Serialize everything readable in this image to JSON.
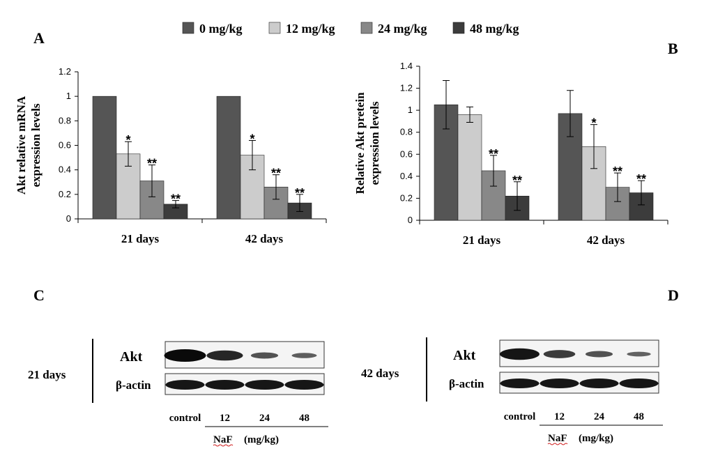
{
  "legend": [
    {
      "label": "0 mg/kg",
      "color": "#555555"
    },
    {
      "label": "12 mg/kg",
      "color": "#cccccc"
    },
    {
      "label": "24 mg/kg",
      "color": "#888888"
    },
    {
      "label": "48 mg/kg",
      "color": "#3c3c3c"
    }
  ],
  "chart_data": [
    {
      "panel": "A",
      "type": "bar",
      "categories": [
        "21 days",
        "42 days"
      ],
      "ylabel": "Akt relative mRNA expression levels",
      "ylim": [
        0,
        1.2
      ],
      "yticks": [
        "0",
        "0.2",
        "0.4",
        "0.6",
        "0.8",
        "1",
        "1.2"
      ],
      "series": [
        {
          "name": "0 mg/kg",
          "values": [
            1.0,
            1.0
          ],
          "errors": [
            0,
            0
          ],
          "sig": [
            "",
            ""
          ]
        },
        {
          "name": "12 mg/kg",
          "values": [
            0.53,
            0.52
          ],
          "errors": [
            0.1,
            0.12
          ],
          "sig": [
            "*",
            "*"
          ]
        },
        {
          "name": "24 mg/kg",
          "values": [
            0.31,
            0.26
          ],
          "errors": [
            0.13,
            0.1
          ],
          "sig": [
            "**",
            "**"
          ]
        },
        {
          "name": "48 mg/kg",
          "values": [
            0.12,
            0.13
          ],
          "errors": [
            0.03,
            0.07
          ],
          "sig": [
            "**",
            "**"
          ]
        }
      ]
    },
    {
      "panel": "B",
      "type": "bar",
      "categories": [
        "21 days",
        "42 days"
      ],
      "ylabel": "Relative Akt pretein expression levels",
      "ylim": [
        0,
        1.4
      ],
      "yticks": [
        "0",
        "0.2",
        "0.4",
        "0.6",
        "0.8",
        "1",
        "1.2",
        "1.4"
      ],
      "series": [
        {
          "name": "0 mg/kg",
          "values": [
            1.05,
            0.97
          ],
          "errors": [
            0.22,
            0.21
          ],
          "sig": [
            "",
            ""
          ]
        },
        {
          "name": "12 mg/kg",
          "values": [
            0.96,
            0.67
          ],
          "errors": [
            0.07,
            0.2
          ],
          "sig": [
            "",
            "*"
          ]
        },
        {
          "name": "24 mg/kg",
          "values": [
            0.45,
            0.3
          ],
          "errors": [
            0.14,
            0.13
          ],
          "sig": [
            "**",
            "**"
          ]
        },
        {
          "name": "48 mg/kg",
          "values": [
            0.22,
            0.25
          ],
          "errors": [
            0.13,
            0.11
          ],
          "sig": [
            "**",
            "**"
          ]
        }
      ]
    }
  ],
  "blots": [
    {
      "panel": "C",
      "time_label": "21 days",
      "target_label": "Akt",
      "loading_label": "β-actin",
      "lanes": [
        "control",
        "12",
        "24",
        "48"
      ],
      "akt_intensity": [
        1.0,
        0.75,
        0.35,
        0.25
      ],
      "treatment": "NaF",
      "unit": "(mg/kg)"
    },
    {
      "panel": "D",
      "time_label": "42 days",
      "target_label": "Akt",
      "loading_label": "β-actin",
      "lanes": [
        "control",
        "12",
        "24",
        "48"
      ],
      "akt_intensity": [
        0.9,
        0.55,
        0.35,
        0.2
      ],
      "treatment": "NaF",
      "unit": "(mg/kg)"
    }
  ]
}
